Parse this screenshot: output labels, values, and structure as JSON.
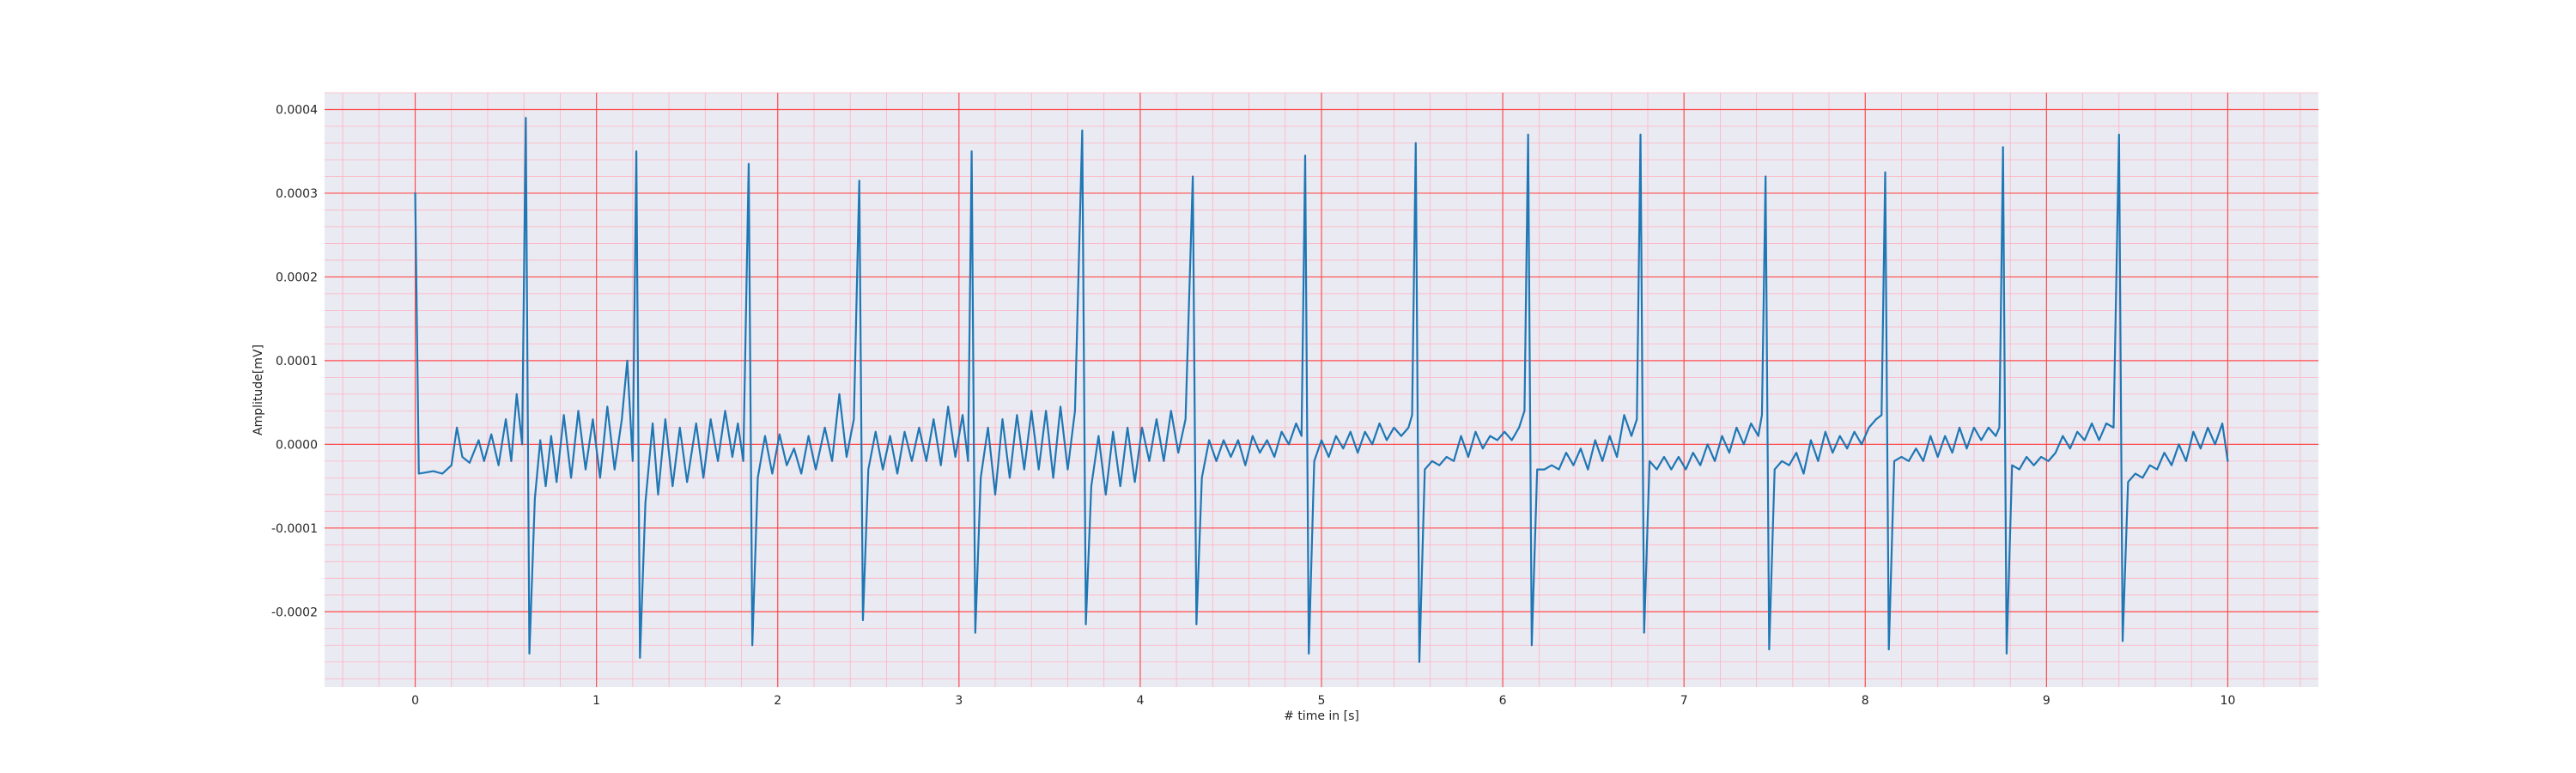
{
  "chart_data": {
    "type": "line",
    "title": "",
    "xlabel": "# time in [s]",
    "ylabel": "Amplitude[mV]",
    "xlim": [
      -0.5,
      10.5
    ],
    "ylim": [
      -0.00029,
      0.00042
    ],
    "x_ticks": [
      0,
      1,
      2,
      3,
      4,
      5,
      6,
      7,
      8,
      9,
      10
    ],
    "x_tick_labels": [
      "0",
      "1",
      "2",
      "3",
      "4",
      "5",
      "6",
      "7",
      "8",
      "9",
      "10"
    ],
    "y_ticks": [
      -0.0002,
      -0.0001,
      0.0,
      0.0001,
      0.0002,
      0.0003,
      0.0004
    ],
    "y_tick_labels": [
      "-0.0002",
      "-0.0001",
      "0.0000",
      "0.0001",
      "0.0002",
      "0.0003",
      "0.0004"
    ],
    "x_minor_step": 0.2,
    "y_minor_step": 2e-05,
    "grid": true,
    "legend": "none",
    "colors": {
      "line": "#1f77b4",
      "background": "#eaeaf2",
      "major_grid": "#ff4d4d",
      "minor_grid": "#ffb3c1",
      "figure": "#ffffff"
    },
    "beats": [
      {
        "t": 0.61,
        "peak": 0.00039,
        "trough": -0.00025
      },
      {
        "t": 1.22,
        "peak": 0.00035,
        "trough": -0.000255
      },
      {
        "t": 1.84,
        "peak": 0.000335,
        "trough": -0.00024
      },
      {
        "t": 2.45,
        "peak": 0.000315,
        "trough": -0.00021
      },
      {
        "t": 3.07,
        "peak": 0.00035,
        "trough": -0.000225
      },
      {
        "t": 3.68,
        "peak": 0.000375,
        "trough": -0.000215
      },
      {
        "t": 4.29,
        "peak": 0.00032,
        "trough": -0.000215
      },
      {
        "t": 4.91,
        "peak": 0.000345,
        "trough": -0.00025
      },
      {
        "t": 5.52,
        "peak": 0.00036,
        "trough": -0.00026
      },
      {
        "t": 6.14,
        "peak": 0.00037,
        "trough": -0.00024
      },
      {
        "t": 6.76,
        "peak": 0.00037,
        "trough": -0.000225
      },
      {
        "t": 7.45,
        "peak": 0.00032,
        "trough": -0.000245
      },
      {
        "t": 8.11,
        "peak": 0.000325,
        "trough": -0.000245
      },
      {
        "t": 8.76,
        "peak": 0.000355,
        "trough": -0.00025
      },
      {
        "t": 9.4,
        "peak": 0.00037,
        "trough": -0.000235
      }
    ],
    "series": [
      {
        "values_note_free": true,
        "points": [
          [
            0.0,
            0.0003
          ],
          [
            0.02,
            -3.5e-05
          ],
          [
            0.1,
            -3.2e-05
          ],
          [
            0.15,
            -3.5e-05
          ],
          [
            0.2,
            -2.5e-05
          ],
          [
            0.23,
            2e-05
          ],
          [
            0.26,
            -1.5e-05
          ],
          [
            0.3,
            -2.2e-05
          ],
          [
            0.35,
            5e-06
          ],
          [
            0.38,
            -2e-05
          ],
          [
            0.42,
            1.2e-05
          ],
          [
            0.46,
            -2.5e-05
          ],
          [
            0.5,
            3e-05
          ],
          [
            0.53,
            -2e-05
          ],
          [
            0.56,
            6e-05
          ],
          [
            0.59,
            0.0
          ],
          [
            0.61,
            0.00039
          ],
          [
            0.63,
            -0.00025
          ],
          [
            0.66,
            -6.5e-05
          ],
          [
            0.69,
            5e-06
          ],
          [
            0.72,
            -5e-05
          ],
          [
            0.75,
            1e-05
          ],
          [
            0.78,
            -4.5e-05
          ],
          [
            0.82,
            3.5e-05
          ],
          [
            0.86,
            -4e-05
          ],
          [
            0.9,
            4e-05
          ],
          [
            0.94,
            -3e-05
          ],
          [
            0.98,
            3e-05
          ],
          [
            1.02,
            -4e-05
          ],
          [
            1.06,
            4.5e-05
          ],
          [
            1.1,
            -3e-05
          ],
          [
            1.14,
            3e-05
          ],
          [
            1.17,
            0.0001
          ],
          [
            1.2,
            -2e-05
          ],
          [
            1.22,
            0.00035
          ],
          [
            1.24,
            -0.000255
          ],
          [
            1.27,
            -7e-05
          ],
          [
            1.31,
            2.5e-05
          ],
          [
            1.34,
            -6e-05
          ],
          [
            1.38,
            3e-05
          ],
          [
            1.42,
            -5e-05
          ],
          [
            1.46,
            2e-05
          ],
          [
            1.5,
            -4.5e-05
          ],
          [
            1.55,
            2.5e-05
          ],
          [
            1.59,
            -4e-05
          ],
          [
            1.63,
            3e-05
          ],
          [
            1.67,
            -2e-05
          ],
          [
            1.71,
            4e-05
          ],
          [
            1.75,
            -1.5e-05
          ],
          [
            1.78,
            2.5e-05
          ],
          [
            1.81,
            -2e-05
          ],
          [
            1.84,
            0.000335
          ],
          [
            1.86,
            -0.00024
          ],
          [
            1.89,
            -4e-05
          ],
          [
            1.93,
            1e-05
          ],
          [
            1.97,
            -3.5e-05
          ],
          [
            2.01,
            1.2e-05
          ],
          [
            2.05,
            -2.5e-05
          ],
          [
            2.09,
            -5e-06
          ],
          [
            2.13,
            -3.5e-05
          ],
          [
            2.17,
            1e-05
          ],
          [
            2.21,
            -3e-05
          ],
          [
            2.26,
            2e-05
          ],
          [
            2.3,
            -2e-05
          ],
          [
            2.34,
            6e-05
          ],
          [
            2.38,
            -1.5e-05
          ],
          [
            2.42,
            3e-05
          ],
          [
            2.45,
            0.000315
          ],
          [
            2.47,
            -0.00021
          ],
          [
            2.5,
            -3e-05
          ],
          [
            2.54,
            1.5e-05
          ],
          [
            2.58,
            -3e-05
          ],
          [
            2.62,
            1e-05
          ],
          [
            2.66,
            -3.5e-05
          ],
          [
            2.7,
            1.5e-05
          ],
          [
            2.74,
            -2e-05
          ],
          [
            2.78,
            2e-05
          ],
          [
            2.82,
            -2e-05
          ],
          [
            2.86,
            3e-05
          ],
          [
            2.9,
            -2.5e-05
          ],
          [
            2.94,
            4.5e-05
          ],
          [
            2.98,
            -1.5e-05
          ],
          [
            3.02,
            3.5e-05
          ],
          [
            3.05,
            -2e-05
          ],
          [
            3.07,
            0.00035
          ],
          [
            3.09,
            -0.000225
          ],
          [
            3.12,
            -4e-05
          ],
          [
            3.16,
            2e-05
          ],
          [
            3.2,
            -6e-05
          ],
          [
            3.24,
            3e-05
          ],
          [
            3.28,
            -4e-05
          ],
          [
            3.32,
            3.5e-05
          ],
          [
            3.36,
            -3e-05
          ],
          [
            3.4,
            4e-05
          ],
          [
            3.44,
            -3e-05
          ],
          [
            3.48,
            4e-05
          ],
          [
            3.52,
            -4e-05
          ],
          [
            3.56,
            4.5e-05
          ],
          [
            3.6,
            -3e-05
          ],
          [
            3.64,
            4e-05
          ],
          [
            3.68,
            0.000375
          ],
          [
            3.7,
            -0.000215
          ],
          [
            3.73,
            -5e-05
          ],
          [
            3.77,
            1e-05
          ],
          [
            3.81,
            -6e-05
          ],
          [
            3.85,
            1.5e-05
          ],
          [
            3.89,
            -5e-05
          ],
          [
            3.93,
            2e-05
          ],
          [
            3.97,
            -4.5e-05
          ],
          [
            4.01,
            2e-05
          ],
          [
            4.05,
            -2e-05
          ],
          [
            4.09,
            3e-05
          ],
          [
            4.13,
            -2e-05
          ],
          [
            4.17,
            4e-05
          ],
          [
            4.21,
            -1e-05
          ],
          [
            4.25,
            3e-05
          ],
          [
            4.29,
            0.00032
          ],
          [
            4.31,
            -0.000215
          ],
          [
            4.34,
            -4e-05
          ],
          [
            4.38,
            5e-06
          ],
          [
            4.42,
            -2e-05
          ],
          [
            4.46,
            5e-06
          ],
          [
            4.5,
            -1.5e-05
          ],
          [
            4.54,
            5e-06
          ],
          [
            4.58,
            -2.5e-05
          ],
          [
            4.62,
            1e-05
          ],
          [
            4.66,
            -1e-05
          ],
          [
            4.7,
            5e-06
          ],
          [
            4.74,
            -1.5e-05
          ],
          [
            4.78,
            1.5e-05
          ],
          [
            4.82,
            0.0
          ],
          [
            4.86,
            2.5e-05
          ],
          [
            4.89,
            1e-05
          ],
          [
            4.91,
            0.000345
          ],
          [
            4.93,
            -0.00025
          ],
          [
            4.96,
            -2e-05
          ],
          [
            5.0,
            5e-06
          ],
          [
            5.04,
            -1.5e-05
          ],
          [
            5.08,
            1e-05
          ],
          [
            5.12,
            -5e-06
          ],
          [
            5.16,
            1.5e-05
          ],
          [
            5.2,
            -1e-05
          ],
          [
            5.24,
            1.5e-05
          ],
          [
            5.28,
            0.0
          ],
          [
            5.32,
            2.5e-05
          ],
          [
            5.36,
            5e-06
          ],
          [
            5.4,
            2e-05
          ],
          [
            5.44,
            1e-05
          ],
          [
            5.48,
            2e-05
          ],
          [
            5.5,
            3.5e-05
          ],
          [
            5.52,
            0.00036
          ],
          [
            5.54,
            -0.00026
          ],
          [
            5.57,
            -3e-05
          ],
          [
            5.61,
            -2e-05
          ],
          [
            5.65,
            -2.5e-05
          ],
          [
            5.69,
            -1.5e-05
          ],
          [
            5.73,
            -2e-05
          ],
          [
            5.77,
            1e-05
          ],
          [
            5.81,
            -1.5e-05
          ],
          [
            5.85,
            1.5e-05
          ],
          [
            5.89,
            -5e-06
          ],
          [
            5.93,
            1e-05
          ],
          [
            5.97,
            5e-06
          ],
          [
            6.01,
            1.5e-05
          ],
          [
            6.05,
            5e-06
          ],
          [
            6.09,
            2e-05
          ],
          [
            6.12,
            4e-05
          ],
          [
            6.14,
            0.00037
          ],
          [
            6.16,
            -0.00024
          ],
          [
            6.19,
            -3e-05
          ],
          [
            6.23,
            -3e-05
          ],
          [
            6.27,
            -2.5e-05
          ],
          [
            6.31,
            -3e-05
          ],
          [
            6.35,
            -1e-05
          ],
          [
            6.39,
            -2.5e-05
          ],
          [
            6.43,
            -5e-06
          ],
          [
            6.47,
            -3e-05
          ],
          [
            6.51,
            5e-06
          ],
          [
            6.55,
            -2e-05
          ],
          [
            6.59,
            1e-05
          ],
          [
            6.63,
            -1.5e-05
          ],
          [
            6.67,
            3.5e-05
          ],
          [
            6.71,
            1e-05
          ],
          [
            6.74,
            3e-05
          ],
          [
            6.76,
            0.00037
          ],
          [
            6.78,
            -0.000225
          ],
          [
            6.81,
            -2e-05
          ],
          [
            6.85,
            -3e-05
          ],
          [
            6.89,
            -1.5e-05
          ],
          [
            6.93,
            -3e-05
          ],
          [
            6.97,
            -1.5e-05
          ],
          [
            7.01,
            -3e-05
          ],
          [
            7.05,
            -1e-05
          ],
          [
            7.09,
            -2.5e-05
          ],
          [
            7.13,
            0.0
          ],
          [
            7.17,
            -2e-05
          ],
          [
            7.21,
            1e-05
          ],
          [
            7.25,
            -1e-05
          ],
          [
            7.29,
            2e-05
          ],
          [
            7.33,
            0.0
          ],
          [
            7.37,
            2.5e-05
          ],
          [
            7.41,
            1e-05
          ],
          [
            7.43,
            3.5e-05
          ],
          [
            7.45,
            0.00032
          ],
          [
            7.47,
            -0.000245
          ],
          [
            7.5,
            -3e-05
          ],
          [
            7.54,
            -2e-05
          ],
          [
            7.58,
            -2.5e-05
          ],
          [
            7.62,
            -1e-05
          ],
          [
            7.66,
            -3.5e-05
          ],
          [
            7.7,
            5e-06
          ],
          [
            7.74,
            -2e-05
          ],
          [
            7.78,
            1.5e-05
          ],
          [
            7.82,
            -1e-05
          ],
          [
            7.86,
            1e-05
          ],
          [
            7.9,
            -5e-06
          ],
          [
            7.94,
            1.5e-05
          ],
          [
            7.98,
            0.0
          ],
          [
            8.02,
            2e-05
          ],
          [
            8.06,
            3e-05
          ],
          [
            8.09,
            3.5e-05
          ],
          [
            8.11,
            0.000325
          ],
          [
            8.13,
            -0.000245
          ],
          [
            8.16,
            -2e-05
          ],
          [
            8.2,
            -1.5e-05
          ],
          [
            8.24,
            -2e-05
          ],
          [
            8.28,
            -5e-06
          ],
          [
            8.32,
            -2e-05
          ],
          [
            8.36,
            1e-05
          ],
          [
            8.4,
            -1.5e-05
          ],
          [
            8.44,
            1e-05
          ],
          [
            8.48,
            -1e-05
          ],
          [
            8.52,
            2e-05
          ],
          [
            8.56,
            -5e-06
          ],
          [
            8.6,
            2e-05
          ],
          [
            8.64,
            5e-06
          ],
          [
            8.68,
            2e-05
          ],
          [
            8.72,
            1e-05
          ],
          [
            8.74,
            2e-05
          ],
          [
            8.76,
            0.000355
          ],
          [
            8.78,
            -0.00025
          ],
          [
            8.81,
            -2.5e-05
          ],
          [
            8.85,
            -3e-05
          ],
          [
            8.89,
            -1.5e-05
          ],
          [
            8.93,
            -2.5e-05
          ],
          [
            8.97,
            -1.5e-05
          ],
          [
            9.01,
            -2e-05
          ],
          [
            9.05,
            -1e-05
          ],
          [
            9.09,
            1e-05
          ],
          [
            9.13,
            -5e-06
          ],
          [
            9.17,
            1.5e-05
          ],
          [
            9.21,
            5e-06
          ],
          [
            9.25,
            2.5e-05
          ],
          [
            9.29,
            5e-06
          ],
          [
            9.33,
            2.5e-05
          ],
          [
            9.37,
            2e-05
          ],
          [
            9.4,
            0.00037
          ],
          [
            9.42,
            -0.000235
          ],
          [
            9.45,
            -4.5e-05
          ],
          [
            9.49,
            -3.5e-05
          ],
          [
            9.53,
            -4e-05
          ],
          [
            9.57,
            -2.5e-05
          ],
          [
            9.61,
            -3e-05
          ],
          [
            9.65,
            -1e-05
          ],
          [
            9.69,
            -2.5e-05
          ],
          [
            9.73,
            0.0
          ],
          [
            9.77,
            -2e-05
          ],
          [
            9.81,
            1.5e-05
          ],
          [
            9.85,
            -5e-06
          ],
          [
            9.89,
            2e-05
          ],
          [
            9.93,
            0.0
          ],
          [
            9.97,
            2.5e-05
          ],
          [
            10.0,
            -2e-05
          ]
        ]
      }
    ]
  }
}
